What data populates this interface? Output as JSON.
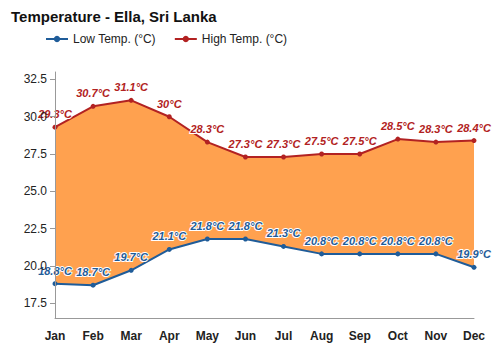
{
  "chart_data": {
    "type": "line",
    "title": "Temperature - Ella, Sri Lanka",
    "categories": [
      "Jan",
      "Feb",
      "Mar",
      "Apr",
      "May",
      "Jun",
      "Jul",
      "Aug",
      "Sep",
      "Oct",
      "Nov",
      "Dec"
    ],
    "series": [
      {
        "name": "Low Temp. (°C)",
        "color": "#1f5c99",
        "values": [
          18.8,
          18.7,
          19.7,
          21.1,
          21.8,
          21.8,
          21.3,
          20.8,
          20.8,
          20.8,
          20.8,
          19.9
        ],
        "value_labels": [
          "18.8°C",
          "18.7°C",
          "19.7°C",
          "21.1°C",
          "21.8°C",
          "21.8°C",
          "21.3°C",
          "20.8°C",
          "20.8°C",
          "20.8°C",
          "20.8°C",
          "19.9°C"
        ]
      },
      {
        "name": "High Temp. (°C)",
        "color": "#b22222",
        "values": [
          29.3,
          30.7,
          31.1,
          30,
          28.3,
          27.3,
          27.3,
          27.5,
          27.5,
          28.5,
          28.3,
          28.4
        ],
        "value_labels": [
          "29.3°C",
          "30.7°C",
          "31.1°C",
          "30°C",
          "28.3°C",
          "27.3°C",
          "27.3°C",
          "27.5°C",
          "27.5°C",
          "28.5°C",
          "28.3°C",
          "28.4°C"
        ]
      }
    ],
    "ylim": [
      16.5,
      33
    ],
    "yticks": [
      17.5,
      {
        "value": 20,
        "label": "20.0"
      },
      22.5,
      {
        "value": 25,
        "label": "25.0"
      },
      27.5,
      {
        "value": 30,
        "label": "30.0"
      },
      32.5
    ],
    "grid": false,
    "legend": "top-left",
    "data_labels": true,
    "marker": "circle"
  }
}
